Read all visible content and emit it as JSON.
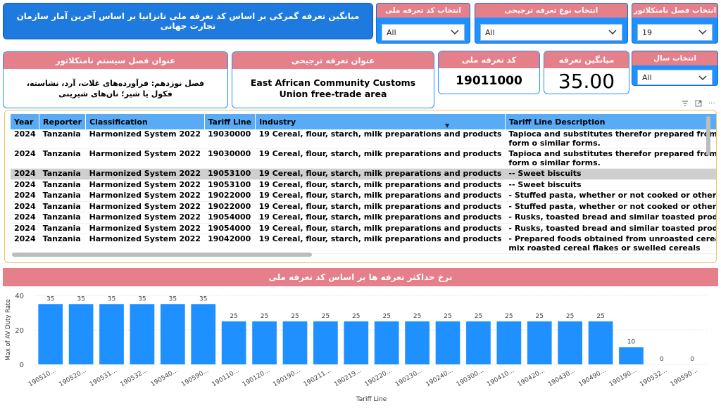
{
  "header": {
    "title": "میانگین تعرفه گمرکی بر اساس کد تعرفه ملی تانزانیا بر اساس آخرین آمار سازمان تجارت جهانی"
  },
  "slicers": {
    "national_code": {
      "label": "انتخاب کد تعرفه ملی",
      "value": "All"
    },
    "preference_type": {
      "label": "انتخاب نوع تعرفه ترجیحی",
      "value": "All"
    },
    "chapter": {
      "label": "انتخاب فصل نامنکلاتور",
      "value": "19"
    },
    "year": {
      "label": "انتخاب سال",
      "value": "All"
    }
  },
  "cards": {
    "chapter_title": {
      "header": "عنوان فصل سیستم نامنکلاتور",
      "value": "فصل نوزدهم: فرآورده‌های غلات، آرد، نشاسته، فکول یا شیر؛ نان‌های شیرینی"
    },
    "preferential": {
      "header": "عنوان تعرفه ترجیحی",
      "value": "East African Community Customs Union free-trade area"
    },
    "tariff_code": {
      "header": "کد تعرفه ملی",
      "value": "19011000"
    },
    "avg_tariff": {
      "header": "میانگین تعرفه",
      "value": "35.00"
    }
  },
  "toolbar": {
    "filter_icon": "filter-icon",
    "focus_icon": "focus-mode-icon",
    "more_label": "···"
  },
  "table": {
    "columns": [
      "Year",
      "Reporter",
      "Classification",
      "Tariff Line",
      "Industry",
      "Tariff Line Description"
    ],
    "rows": [
      [
        "2024",
        "Tanzania",
        "Harmonized System 2022",
        "19030000",
        "19 Cereal, flour, starch, milk preparations and products",
        "Tapioca and substitutes therefor prepared from starch, in the form o similar forms."
      ],
      [
        "2024",
        "Tanzania",
        "Harmonized System 2022",
        "19030000",
        "19 Cereal, flour, starch, milk preparations and products",
        "Tapioca and substitutes therefor prepared from starch, in the form o similar forms."
      ],
      [
        "2024",
        "Tanzania",
        "Harmonized System 2022",
        "19053100",
        "19 Cereal, flour, starch, milk preparations and products",
        "-- Sweet biscuits"
      ],
      [
        "2024",
        "Tanzania",
        "Harmonized System 2022",
        "19053100",
        "19 Cereal, flour, starch, milk preparations and products",
        "-- Sweet biscuits"
      ],
      [
        "2024",
        "Tanzania",
        "Harmonized System 2022",
        "19022000",
        "19 Cereal, flour, starch, milk preparations and products",
        "- Stuffed pasta, whether or not cooked or otherwise prepared"
      ],
      [
        "2024",
        "Tanzania",
        "Harmonized System 2022",
        "19022000",
        "19 Cereal, flour, starch, milk preparations and products",
        "- Stuffed pasta, whether or not cooked or otherwise prepared"
      ],
      [
        "2024",
        "Tanzania",
        "Harmonized System 2022",
        "19054000",
        "19 Cereal, flour, starch, milk preparations and products",
        "- Rusks, toasted bread and similar toasted products"
      ],
      [
        "2024",
        "Tanzania",
        "Harmonized System 2022",
        "19054000",
        "19 Cereal, flour, starch, milk preparations and products",
        "- Rusks, toasted bread and similar toasted products"
      ],
      [
        "2024",
        "Tanzania",
        "Harmonized System 2022",
        "19042000",
        "19 Cereal, flour, starch, milk preparations and products",
        "- Prepared foods obtained from unroasted cereal flakes or from mix roasted cereal flakes or swelled cereals"
      ]
    ],
    "selected_row": 2
  },
  "chart_data": {
    "type": "bar",
    "title": "نرخ حداکثر تعرفه ها بر اساس کد تعرفه ملی",
    "xlabel": "Tariff Line",
    "ylabel": "Max of AV Duty Rate",
    "ylim": [
      0,
      40
    ],
    "yticks": [
      0,
      20,
      40
    ],
    "categories": [
      "190510...",
      "190520...",
      "190531...",
      "190532...",
      "190540...",
      "190590...",
      "190110...",
      "190120...",
      "190190...",
      "190211...",
      "190219...",
      "190220...",
      "190230...",
      "190240...",
      "190300...",
      "190410...",
      "190420...",
      "190430...",
      "190490...",
      "190190...",
      "190532...",
      "190590..."
    ],
    "values": [
      35,
      35,
      35,
      35,
      35,
      35,
      25,
      25,
      25,
      25,
      25,
      25,
      25,
      25,
      25,
      25,
      25,
      25,
      25,
      10,
      0,
      0
    ],
    "color": "#1e90ff",
    "grid": true
  }
}
